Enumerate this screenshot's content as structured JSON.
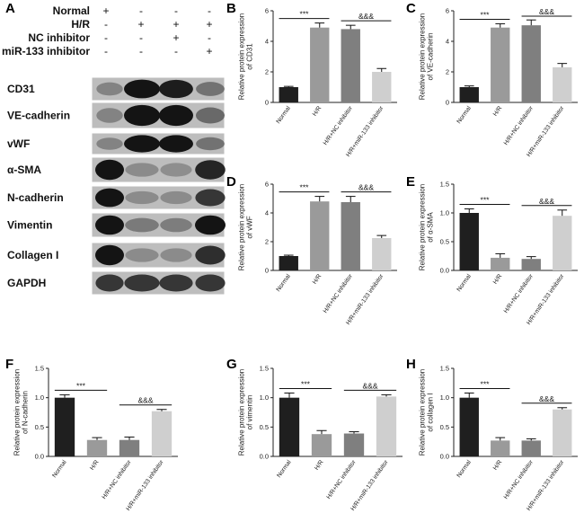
{
  "blot": {
    "panel_label": "A",
    "conditions": [
      {
        "label": "Normal",
        "signs": [
          "+",
          "-",
          "-",
          "-"
        ]
      },
      {
        "label": "H/R",
        "signs": [
          "-",
          "+",
          "+",
          "+"
        ]
      },
      {
        "label": "NC inhibitor",
        "signs": [
          "-",
          "-",
          "+",
          "-"
        ]
      },
      {
        "label": "miR-133 inhibitor",
        "signs": [
          "-",
          "-",
          "-",
          "+"
        ]
      }
    ],
    "proteins": [
      "CD31",
      "VE-cadherin",
      "vWF",
      "α-SMA",
      "N-cadherin",
      "Vimentin",
      "Collagen I",
      "GAPDH"
    ],
    "band_intensity": [
      [
        0.35,
        1.0,
        0.95,
        0.45
      ],
      [
        0.35,
        1.0,
        1.0,
        0.5
      ],
      [
        0.35,
        1.0,
        1.0,
        0.45
      ],
      [
        1.0,
        0.3,
        0.28,
        0.9
      ],
      [
        1.0,
        0.3,
        0.3,
        0.8
      ],
      [
        1.0,
        0.4,
        0.38,
        1.0
      ],
      [
        1.0,
        0.3,
        0.3,
        0.85
      ],
      [
        0.8,
        0.8,
        0.8,
        0.8
      ]
    ]
  },
  "chart_data": [
    {
      "panel": "B",
      "type": "bar",
      "categories": [
        "Normal",
        "H/R",
        "H/R+NC inhibitor",
        "H/R+miR-133 inhibitor"
      ],
      "values": [
        1.0,
        4.9,
        4.8,
        2.0
      ],
      "errors": [
        0.05,
        0.3,
        0.25,
        0.22
      ],
      "ylabel": "Relative protein expression\nof CD31",
      "ylim": [
        0,
        6
      ],
      "yticks": [
        "0",
        "2",
        "4",
        "6"
      ],
      "sig_left": "***",
      "sig_right": "&&&"
    },
    {
      "panel": "C",
      "type": "bar",
      "categories": [
        "Normal",
        "H/R",
        "H/R+NC inhibitor",
        "H/R+miR-133 inhibitor"
      ],
      "values": [
        1.0,
        4.9,
        5.05,
        2.3
      ],
      "errors": [
        0.08,
        0.25,
        0.35,
        0.25
      ],
      "ylabel": "Relative protein expression\nof VE-cadherin",
      "ylim": [
        0,
        6
      ],
      "yticks": [
        "0",
        "2",
        "4",
        "6"
      ],
      "sig_left": "***",
      "sig_right": "&&&"
    },
    {
      "panel": "D",
      "type": "bar",
      "categories": [
        "Normal",
        "H/R",
        "H/R+NC inhibitor",
        "H/R+miR-133 inhibitor"
      ],
      "values": [
        1.0,
        4.8,
        4.75,
        2.25
      ],
      "errors": [
        0.06,
        0.35,
        0.4,
        0.18
      ],
      "ylabel": "Relative protein expression\nof vWF",
      "ylim": [
        0,
        6
      ],
      "yticks": [
        "0",
        "2",
        "4",
        "6"
      ],
      "sig_left": "***",
      "sig_right": "&&&"
    },
    {
      "panel": "E",
      "type": "bar",
      "categories": [
        "Normal",
        "H/R",
        "H/R+NC inhibitor",
        "H/R+miR-133 inhibitor"
      ],
      "values": [
        1.0,
        0.22,
        0.2,
        0.95
      ],
      "errors": [
        0.07,
        0.07,
        0.04,
        0.1
      ],
      "ylabel": "Relative protein expression\nof α-SMA",
      "ylim": [
        0,
        1.5
      ],
      "yticks": [
        "0.0",
        "0.5",
        "1.0",
        "1.5"
      ],
      "sig_left": "***",
      "sig_right": "&&&"
    },
    {
      "panel": "F",
      "type": "bar",
      "categories": [
        "Normal",
        "H/R",
        "H/R+NC inhibitor",
        "H/R+miR-133 inhibitor"
      ],
      "values": [
        1.0,
        0.28,
        0.28,
        0.77
      ],
      "errors": [
        0.05,
        0.04,
        0.05,
        0.03
      ],
      "ylabel": "Relative protein expression\nof N-cadherin",
      "ylim": [
        0,
        1.5
      ],
      "yticks": [
        "0.0",
        "0.5",
        "1.0",
        "1.5"
      ],
      "sig_left": "***",
      "sig_right": "&&&"
    },
    {
      "panel": "G",
      "type": "bar",
      "categories": [
        "Normal",
        "H/R",
        "H/R+NC inhibitor",
        "H/R+miR-133 inhibitor"
      ],
      "values": [
        1.0,
        0.38,
        0.39,
        1.02
      ],
      "errors": [
        0.08,
        0.06,
        0.03,
        0.03
      ],
      "ylabel": "Relative protein expression\nof vimentin",
      "ylim": [
        0,
        1.5
      ],
      "yticks": [
        "0.0",
        "0.5",
        "1.0",
        "1.5"
      ],
      "sig_left": "***",
      "sig_right": "&&&"
    },
    {
      "panel": "H",
      "type": "bar",
      "categories": [
        "Normal",
        "H/R",
        "H/R+NC inhibitor",
        "H/R+miR-133 inhibitor"
      ],
      "values": [
        1.0,
        0.27,
        0.27,
        0.8
      ],
      "errors": [
        0.08,
        0.05,
        0.03,
        0.03
      ],
      "ylabel": "Relative protein expression\nof collagen I",
      "ylim": [
        0,
        1.5
      ],
      "yticks": [
        "0.0",
        "0.5",
        "1.0",
        "1.5"
      ],
      "sig_left": "***",
      "sig_right": "&&&"
    }
  ],
  "colors": {
    "bar_fills": [
      "#1f1f1f",
      "#9a9a9a",
      "#7f7f7f",
      "#cfcfcf"
    ],
    "axis": "#222222"
  }
}
